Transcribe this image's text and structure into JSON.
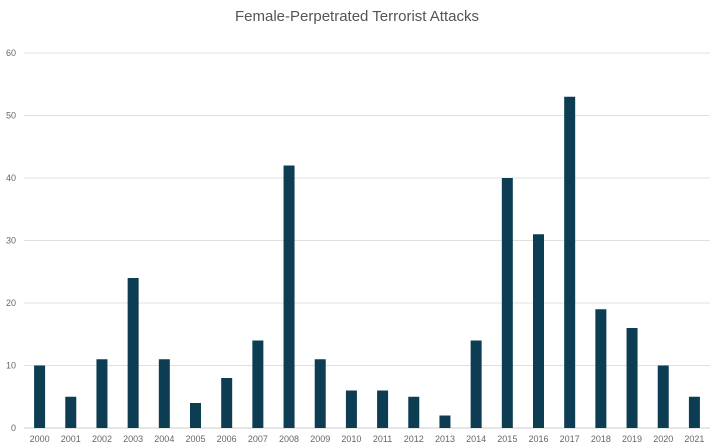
{
  "chart_data": {
    "type": "bar",
    "title": "Female-Perpetrated Terrorist Attacks",
    "xlabel": "",
    "ylabel": "",
    "ylim": [
      0,
      60
    ],
    "yticks": [
      0,
      10,
      20,
      30,
      40,
      50,
      60
    ],
    "grid": true,
    "legend": "none",
    "bar_color": "#0d3d52",
    "categories": [
      "2000",
      "2001",
      "2002",
      "2003",
      "2004",
      "2005",
      "2006",
      "2007",
      "2008",
      "2009",
      "2010",
      "2011",
      "2012",
      "2013",
      "2014",
      "2015",
      "2016",
      "2017",
      "2018",
      "2019",
      "2020",
      "2021"
    ],
    "values": [
      10,
      5,
      11,
      24,
      11,
      4,
      8,
      14,
      42,
      11,
      6,
      6,
      5,
      2,
      14,
      40,
      31,
      53,
      19,
      16,
      10,
      5
    ]
  }
}
